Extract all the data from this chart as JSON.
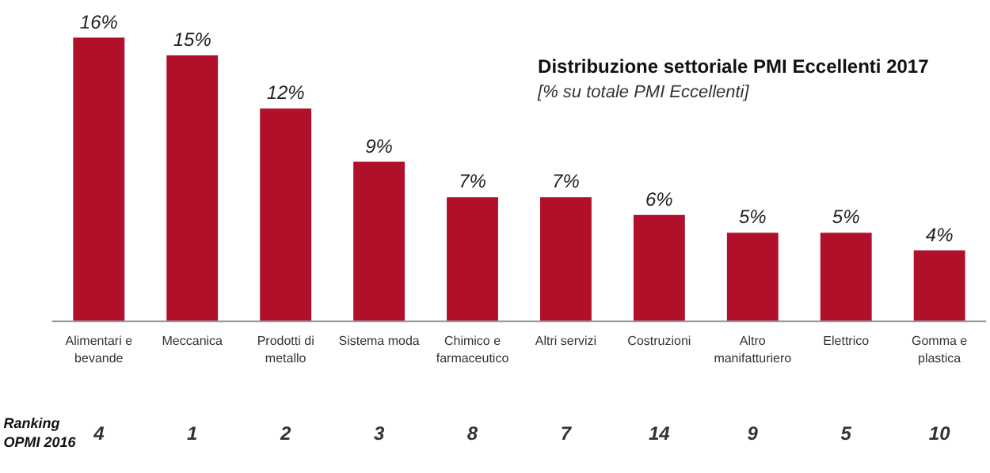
{
  "chart_data": {
    "type": "bar",
    "title": "Distribuzione settoriale PMI Eccellenti 2017",
    "subtitle": "[% su totale PMI Eccellenti]",
    "categories": [
      "Alimentari e\nbevande",
      "Meccanica",
      "Prodotti di\nmetallo",
      "Sistema moda",
      "Chimico e\nfarmaceutico",
      "Altri servizi",
      "Costruzioni",
      "Altro\nmanifatturiero",
      "Elettrico",
      "Gomma e\nplastica"
    ],
    "values": [
      16,
      15,
      12,
      9,
      7,
      7,
      6,
      5,
      5,
      4
    ],
    "value_labels": [
      "16%",
      "15%",
      "12%",
      "9%",
      "7%",
      "7%",
      "6%",
      "5%",
      "5%",
      "4%"
    ],
    "color": "#b0102a",
    "annotations": [
      "Ranking\nOPMI 2016",
      "4",
      "1",
      "2",
      "3",
      "8",
      "7",
      "14",
      "9",
      "5",
      "10"
    ]
  }
}
